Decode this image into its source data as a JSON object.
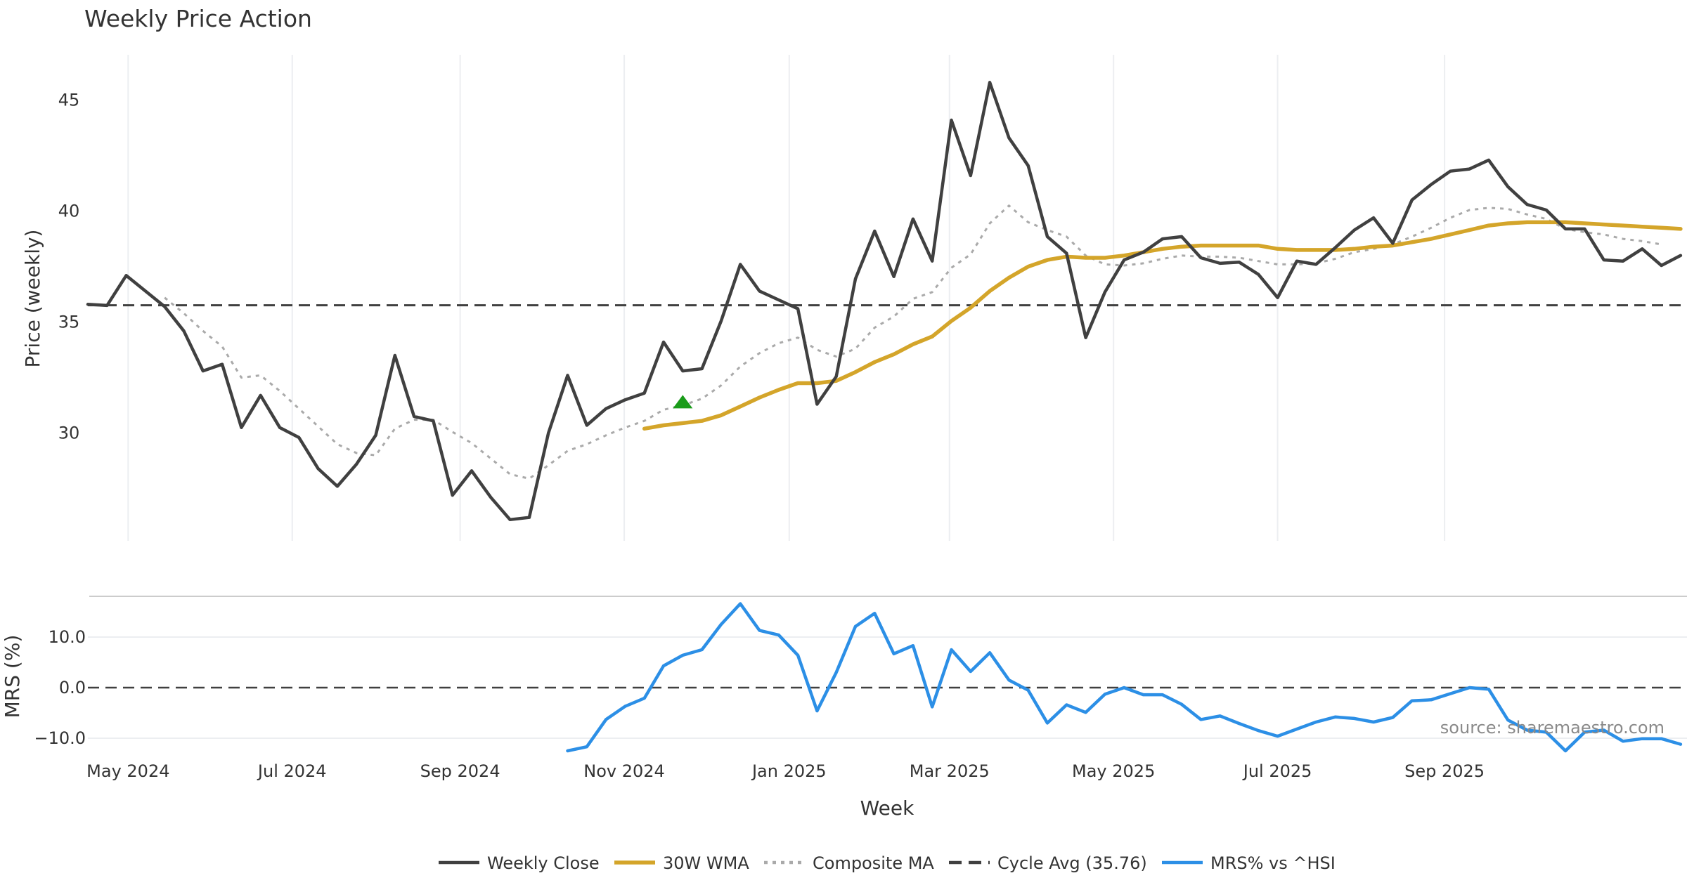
{
  "chart_data": {
    "type": "line",
    "title": "Weekly Price Action",
    "xlabel": "Week",
    "x_ticks": [
      "May 2024",
      "Jul 2024",
      "Sep 2024",
      "Nov 2024",
      "Jan 2025",
      "Mar 2025",
      "May 2025",
      "Jul 2025",
      "Sep 2025"
    ],
    "source": "source: sharemaestro.com",
    "colors": {
      "close": "#404040",
      "wma": "#D4A52A",
      "composite": "#AAAAAA",
      "cycle": "#404040",
      "mrs": "#2C8FE6",
      "marker": "#1A9C1A",
      "grid": "#ECEEF1"
    },
    "price_panel": {
      "ylabel": "Price (weekly)",
      "ylim": [
        24.6,
        47.0
      ],
      "yticks": [
        30,
        35,
        40,
        45
      ],
      "cycle_avg": 35.76,
      "marker": {
        "week": 31,
        "value": 31.4,
        "shape": "triangle-up"
      },
      "series": [
        {
          "key": "close",
          "name": "Weekly Close",
          "style": "solid",
          "start": 0,
          "values": [
            35.8,
            35.75,
            37.1,
            36.4,
            35.7,
            34.6,
            32.8,
            33.1,
            30.25,
            31.7,
            30.25,
            29.8,
            28.4,
            27.6,
            28.6,
            29.9,
            33.5,
            30.75,
            30.55,
            27.2,
            28.3,
            27.1,
            26.1,
            26.2,
            30.0,
            32.6,
            30.35,
            31.1,
            31.5,
            31.8,
            34.1,
            32.8,
            32.9,
            35.05,
            37.6,
            36.4,
            36.0,
            35.6,
            31.3,
            32.55,
            36.95,
            39.1,
            37.05,
            39.65,
            37.75,
            44.1,
            41.6,
            45.8,
            43.3,
            42.05,
            38.85,
            38.1,
            34.3,
            36.35,
            37.8,
            38.15,
            38.75,
            38.85,
            37.9,
            37.65,
            37.7,
            37.15,
            36.1,
            37.75,
            37.6,
            38.35,
            39.15,
            39.7,
            38.55,
            40.5,
            41.2,
            41.8,
            41.9,
            42.3,
            41.1,
            40.3,
            40.05,
            39.2,
            39.2,
            37.8,
            37.75,
            38.3,
            37.55,
            38.0
          ]
        },
        {
          "key": "wma",
          "name": "30W WMA",
          "style": "solid",
          "start": 29,
          "values": [
            30.2,
            30.35,
            30.45,
            30.55,
            30.8,
            31.2,
            31.6,
            31.95,
            32.25,
            32.25,
            32.35,
            32.75,
            33.2,
            33.55,
            34.0,
            34.35,
            35.05,
            35.65,
            36.4,
            37.0,
            37.5,
            37.8,
            37.95,
            37.9,
            37.9,
            38.0,
            38.15,
            38.3,
            38.4,
            38.45,
            38.45,
            38.45,
            38.45,
            38.3,
            38.25,
            38.25,
            38.25,
            38.3,
            38.4,
            38.45,
            38.6,
            38.75,
            38.95,
            39.15,
            39.35,
            39.45,
            39.5,
            39.5,
            39.5,
            39.45,
            39.4,
            39.35,
            39.3,
            39.25,
            39.2
          ]
        },
        {
          "key": "composite",
          "name": "Composite MA",
          "style": "dotted",
          "start": 4,
          "values": [
            36.1,
            35.4,
            34.6,
            33.9,
            32.5,
            32.6,
            31.9,
            31.1,
            30.3,
            29.5,
            29.1,
            29.0,
            30.2,
            30.6,
            30.6,
            30.05,
            29.55,
            28.85,
            28.15,
            27.95,
            28.55,
            29.2,
            29.5,
            29.9,
            30.25,
            30.55,
            31.05,
            31.25,
            31.55,
            32.15,
            33.0,
            33.6,
            34.05,
            34.3,
            33.75,
            33.45,
            33.8,
            34.75,
            35.25,
            36.05,
            36.35,
            37.45,
            38.05,
            39.45,
            40.25,
            39.5,
            39.15,
            38.85,
            38.0,
            37.6,
            37.55,
            37.65,
            37.85,
            38.0,
            37.95,
            37.95,
            37.9,
            37.75,
            37.6,
            37.6,
            37.65,
            37.85,
            38.15,
            38.3,
            38.5,
            38.85,
            39.25,
            39.7,
            40.05,
            40.15,
            40.1,
            39.85,
            39.65,
            39.2,
            39.05,
            38.95,
            38.75,
            38.65,
            38.5
          ]
        }
      ]
    },
    "mrs_panel": {
      "ylabel": "MRS (%)",
      "ylim": [
        -12.5,
        18.5
      ],
      "yticks": [
        -10.0,
        0.0,
        10.0
      ],
      "ytick_labels": [
        "−10.0",
        "0.0",
        "10.0"
      ],
      "zero_line": 0.0,
      "series": [
        {
          "key": "mrs",
          "name": "MRS% vs ^HSI",
          "style": "solid",
          "start": 25,
          "values": [
            -12.5,
            -11.7,
            -6.3,
            -3.7,
            -2.1,
            4.3,
            6.4,
            7.5,
            12.5,
            16.6,
            11.3,
            10.4,
            6.4,
            -4.6,
            3.0,
            12.1,
            14.7,
            6.7,
            8.3,
            -3.8,
            7.5,
            3.2,
            6.9,
            1.5,
            -0.5,
            -7.0,
            -3.4,
            -4.9,
            -1.3,
            0.0,
            -1.4,
            -1.4,
            -3.3,
            -6.3,
            -5.6,
            -7.1,
            -8.5,
            -9.6,
            -8.2,
            -6.8,
            -5.8,
            -6.1,
            -6.8,
            -5.9,
            -2.6,
            -2.4,
            -1.2,
            0.0,
            -0.3,
            -6.4,
            -8.4,
            -8.8,
            -12.5,
            -8.8,
            -8.4,
            -10.6,
            -10.1,
            -10.1,
            -11.2
          ]
        }
      ]
    },
    "legend": [
      {
        "key": "close",
        "label": "Weekly Close",
        "style": "solid"
      },
      {
        "key": "wma",
        "label": "30W WMA",
        "style": "solid"
      },
      {
        "key": "composite",
        "label": "Composite MA",
        "style": "dotted"
      },
      {
        "key": "cycle",
        "label": "Cycle Avg (35.76)",
        "style": "dashed"
      },
      {
        "key": "mrs",
        "label": "MRS% vs ^HSI",
        "style": "solid"
      }
    ]
  }
}
